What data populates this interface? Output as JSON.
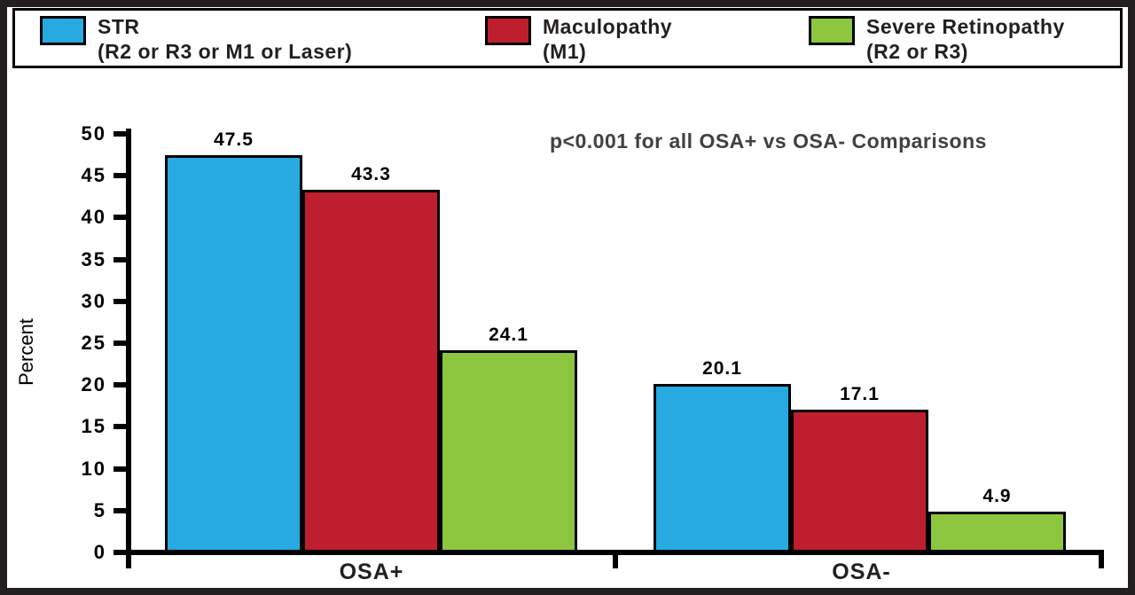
{
  "chart_data": {
    "type": "bar",
    "title": "",
    "xlabel": "",
    "ylabel": "Percent",
    "categories": [
      "OSA+",
      "OSA-"
    ],
    "series": [
      {
        "name": "STR",
        "detail": "(R2 or R3 or M1 or Laser)",
        "color": "#27AAE1",
        "values": [
          47.5,
          20.1
        ]
      },
      {
        "name": "Maculopathy",
        "detail": "(M1)",
        "color": "#BE1E2D",
        "values": [
          43.3,
          17.1
        ]
      },
      {
        "name": "Severe Retinopathy",
        "detail": "(R2 or R3)",
        "color": "#8CC63F",
        "values": [
          24.1,
          4.9
        ]
      }
    ],
    "ylim": [
      0,
      50
    ],
    "y_ticks": [
      0,
      5,
      10,
      15,
      20,
      25,
      30,
      35,
      40,
      45,
      50
    ],
    "grid": false,
    "legend_position": "top",
    "value_labels": true,
    "annotation": "p<0.001 for all OSA+ vs OSA- Comparisons",
    "annotation_color": "#414042",
    "axis_color": "#000000"
  }
}
